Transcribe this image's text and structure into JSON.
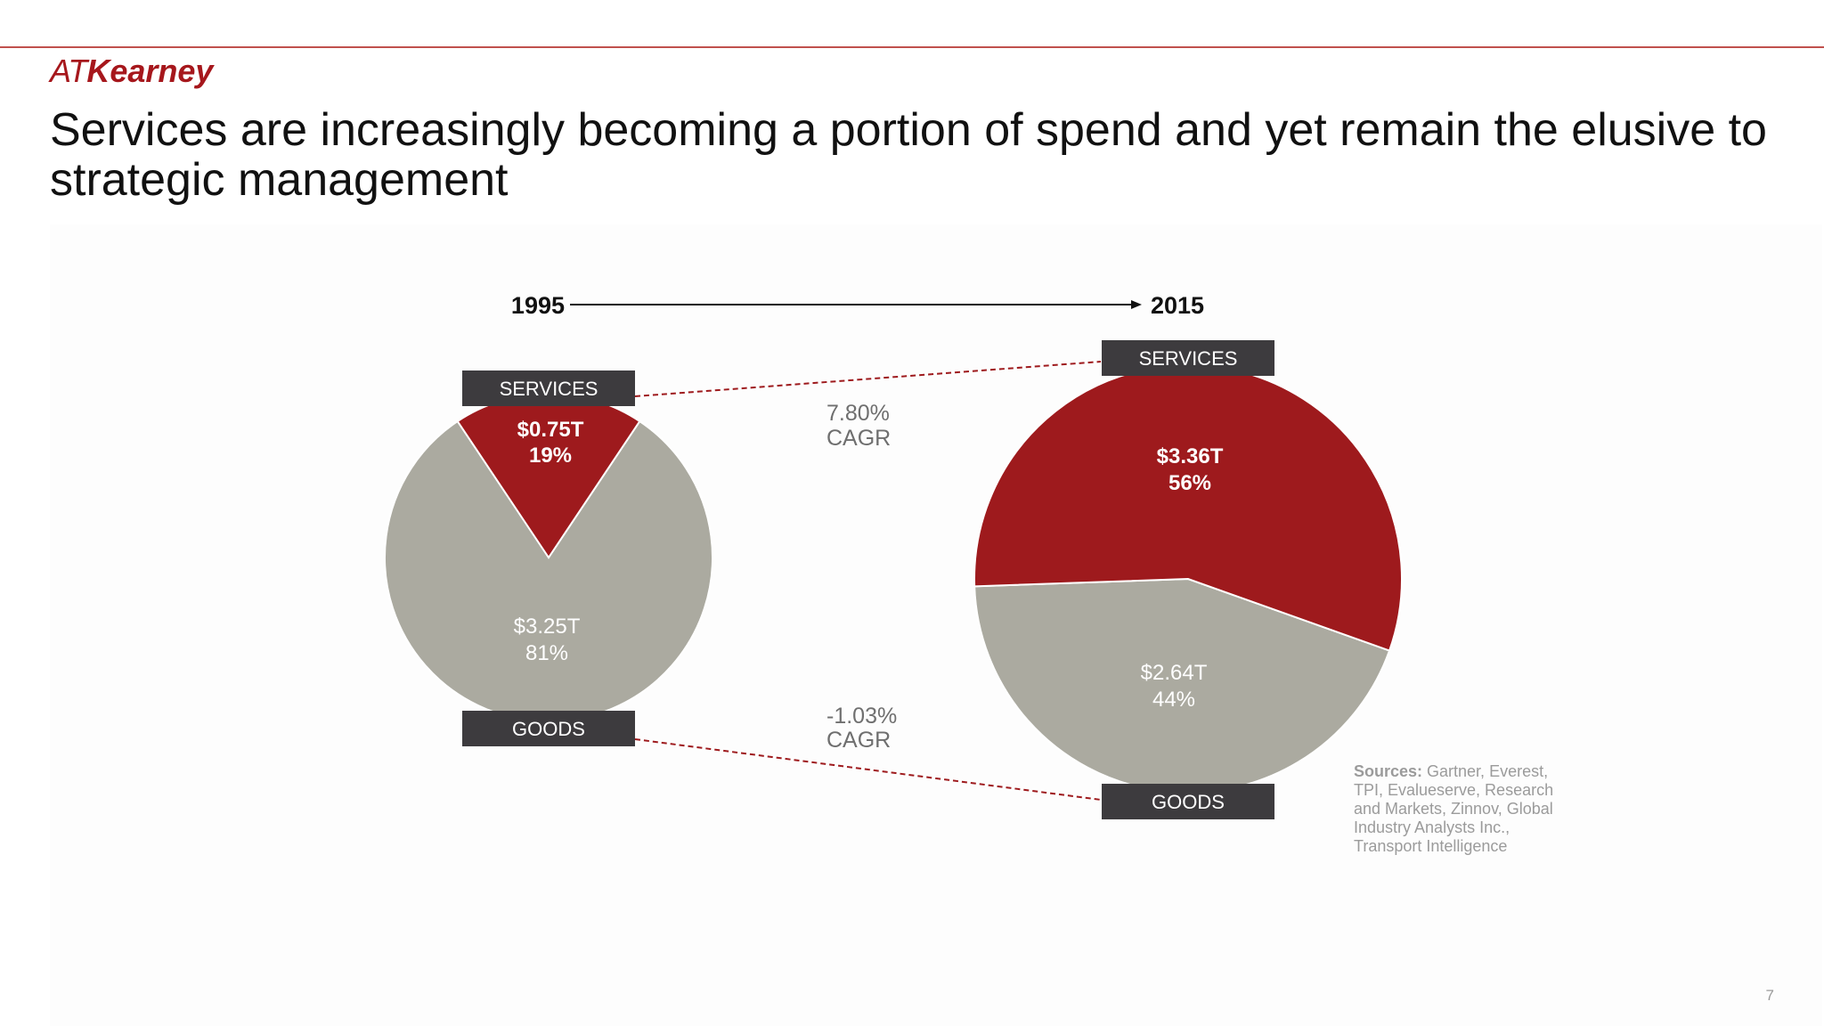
{
  "header": {
    "logo_part1": "AT",
    "logo_part2": "Kearney",
    "title": "Services are increasingly becoming a portion of spend and yet remain the elusive to strategic management"
  },
  "footer": {
    "page_number": "7"
  },
  "colors": {
    "services": "#9e1a1d",
    "goods": "#abaaa0",
    "label_box": "#3d3b3e",
    "connector": "#9e1a1d",
    "cagr_text": "#6f6f6f",
    "sources_text": "#9b9b9b"
  },
  "chart_data": [
    {
      "type": "pie",
      "year": "1995",
      "slices": [
        {
          "name": "SERVICES",
          "value": 0.75,
          "percent": 19,
          "value_label": "$0.75T",
          "percent_label": "19%"
        },
        {
          "name": "GOODS",
          "value": 3.25,
          "percent": 81,
          "value_label": "$3.25T",
          "percent_label": "81%"
        }
      ]
    },
    {
      "type": "pie",
      "year": "2015",
      "slices": [
        {
          "name": "SERVICES",
          "value": 3.36,
          "percent": 56,
          "value_label": "$3.36T",
          "percent_label": "56%"
        },
        {
          "name": "GOODS",
          "value": 2.64,
          "percent": 44,
          "value_label": "$2.64T",
          "percent_label": "44%"
        }
      ]
    }
  ],
  "timeline": {
    "start": "1995",
    "end": "2015"
  },
  "cagr": [
    {
      "line1": "7.80%",
      "line2": "CAGR"
    },
    {
      "line1": "-1.03%",
      "line2": "CAGR"
    }
  ],
  "sources": {
    "label": "Sources:",
    "lines": [
      " Gartner, Everest,",
      "TPI, Evalueserve, Research",
      "and Markets, Zinnov, Global",
      "Industry Analysts Inc.,",
      "Transport Intelligence"
    ]
  }
}
